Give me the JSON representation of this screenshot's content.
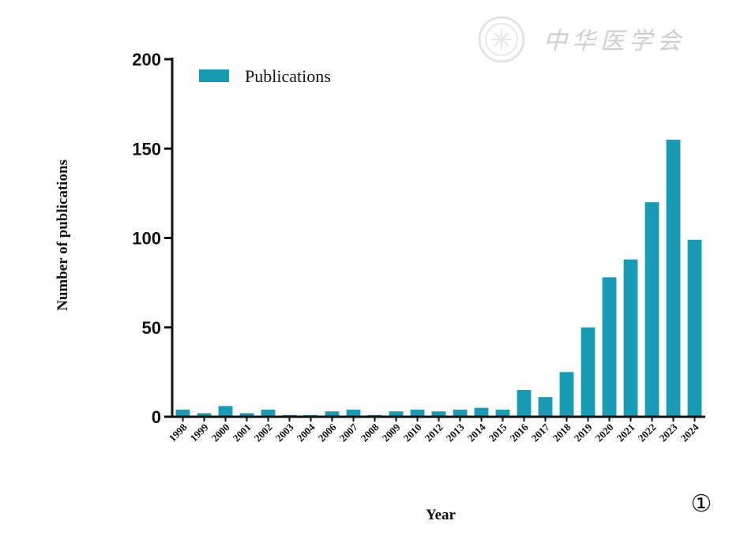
{
  "watermark": {
    "text": "中华医学会",
    "icon": "seal-logo-icon"
  },
  "panel_label": "①",
  "chart_data": {
    "type": "bar",
    "categories": [
      "1998",
      "1999",
      "2000",
      "2001",
      "2002",
      "2003",
      "2004",
      "2006",
      "2007",
      "2008",
      "2009",
      "2010",
      "2012",
      "2013",
      "2014",
      "2015",
      "2016",
      "2017",
      "2018",
      "2019",
      "2020",
      "2021",
      "2022",
      "2023",
      "2024"
    ],
    "series": [
      {
        "name": "Publications",
        "values": [
          4,
          2,
          6,
          2,
          4,
          1,
          1,
          3,
          4,
          1,
          3,
          4,
          3,
          4,
          5,
          4,
          15,
          11,
          25,
          50,
          78,
          88,
          120,
          155,
          99
        ]
      }
    ],
    "xlabel": "Year",
    "ylabel": "Number of publications",
    "yticks": [
      0,
      50,
      100,
      150,
      200
    ],
    "ylim": [
      0,
      200
    ],
    "legend": "top-left",
    "grid": false,
    "bar_color": "#1a9bb5"
  }
}
